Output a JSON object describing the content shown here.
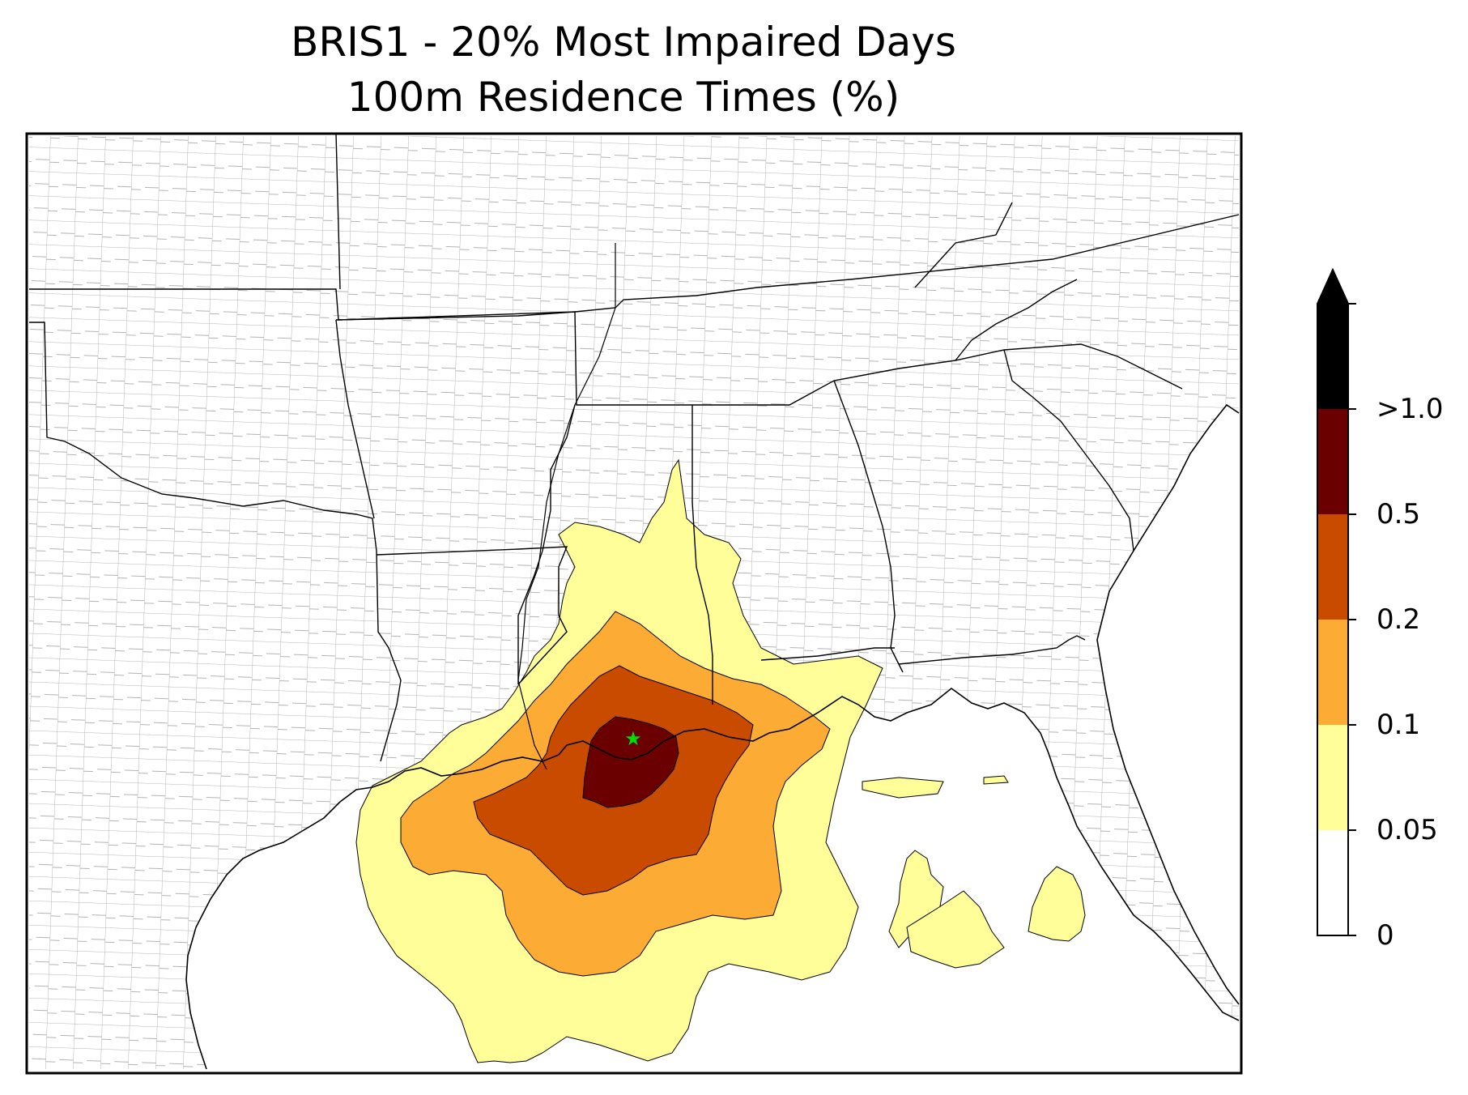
{
  "title": {
    "line1": "BRIS1 - 20% Most Impaired Days",
    "line2": "100m Residence Times (%)"
  },
  "legend": {
    "labels": [
      ">1.0",
      "0.5",
      "0.2",
      "0.1",
      "0.05",
      "0"
    ],
    "colors": [
      "#000000",
      "#6a0000",
      "#c84b00",
      "#fcac34",
      "#fffe98",
      "#ffffff"
    ],
    "extend": "max"
  },
  "map": {
    "region": "southeastern United States and Gulf of Mexico",
    "source_marker_color": "#00e000",
    "fill_colors": {
      "lt_0_1": "#fffe98",
      "lt_0_2": "#fcac34",
      "lt_0_5": "#c84b00",
      "lt_1_0": "#6a0000"
    }
  }
}
